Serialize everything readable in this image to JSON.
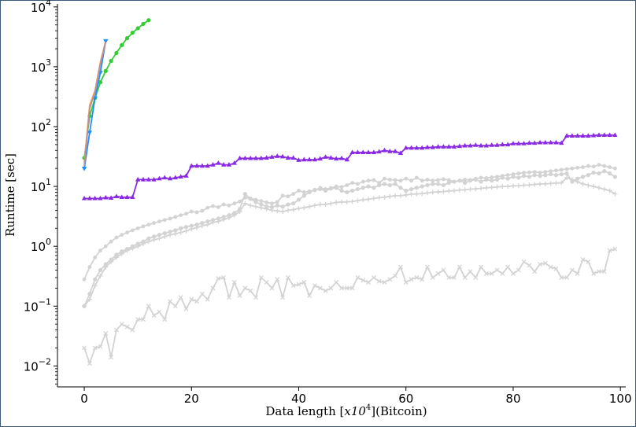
{
  "chart_data": {
    "type": "line",
    "xlabel_prefix": "Data length [",
    "xlabel_math": "x10",
    "xlabel_exp": "4",
    "xlabel_suffix": "](Bitcoin)",
    "ylabel": "Runtime [sec]",
    "xlim": [
      -5,
      101
    ],
    "ylim_log10": [
      -2.35,
      4.05
    ],
    "yscale": "log",
    "xticks": [
      {
        "value": 0,
        "label": "0"
      },
      {
        "value": 20,
        "label": "20"
      },
      {
        "value": 40,
        "label": "40"
      },
      {
        "value": 60,
        "label": "60"
      },
      {
        "value": 80,
        "label": "80"
      },
      {
        "value": 100,
        "label": "100"
      }
    ],
    "yticks": [
      {
        "exp": -2,
        "base": "10",
        "sup": "−2"
      },
      {
        "exp": -1,
        "base": "10",
        "sup": "−1"
      },
      {
        "exp": 0,
        "base": "10",
        "sup": "0"
      },
      {
        "exp": 1,
        "base": "10",
        "sup": "1"
      },
      {
        "exp": 2,
        "base": "10",
        "sup": "2"
      },
      {
        "exp": 3,
        "base": "10",
        "sup": "3"
      },
      {
        "exp": 4,
        "base": "10",
        "sup": "4"
      }
    ],
    "grid": false,
    "legend": "none",
    "series": [
      {
        "color": "#d3d3d3",
        "marker": "x",
        "x": [
          0,
          1,
          2,
          3,
          4,
          5,
          6,
          7,
          8,
          9,
          10,
          11,
          12,
          13,
          14,
          15,
          16,
          17,
          18,
          19,
          20,
          21,
          22,
          23,
          24,
          25,
          26,
          27,
          28,
          29,
          30,
          31,
          32,
          33,
          34,
          35,
          36,
          37,
          38,
          39,
          40,
          41,
          42,
          43,
          44,
          45,
          46,
          47,
          48,
          49,
          50,
          51,
          52,
          53,
          54,
          55,
          56,
          57,
          58,
          59,
          60,
          61,
          62,
          63,
          64,
          65,
          66,
          67,
          68,
          69,
          70,
          71,
          72,
          73,
          74,
          75,
          76,
          77,
          78,
          79,
          80,
          81,
          82,
          83,
          84,
          85,
          86,
          87,
          88,
          89,
          90,
          91,
          92,
          93,
          94,
          95,
          96,
          97,
          98,
          99
        ],
        "y": [
          0.02,
          0.011,
          0.02,
          0.021,
          0.035,
          0.014,
          0.04,
          0.05,
          0.045,
          0.04,
          0.06,
          0.06,
          0.1,
          0.07,
          0.08,
          0.06,
          0.12,
          0.1,
          0.14,
          0.09,
          0.13,
          0.12,
          0.16,
          0.13,
          0.2,
          0.29,
          0.3,
          0.14,
          0.25,
          0.15,
          0.2,
          0.18,
          0.14,
          0.3,
          0.25,
          0.2,
          0.28,
          0.14,
          0.3,
          0.22,
          0.23,
          0.25,
          0.15,
          0.22,
          0.2,
          0.18,
          0.2,
          0.25,
          0.2,
          0.2,
          0.2,
          0.3,
          0.27,
          0.25,
          0.3,
          0.26,
          0.25,
          0.28,
          0.32,
          0.45,
          0.25,
          0.28,
          0.3,
          0.28,
          0.45,
          0.3,
          0.35,
          0.4,
          0.3,
          0.3,
          0.45,
          0.3,
          0.38,
          0.3,
          0.45,
          0.35,
          0.35,
          0.4,
          0.35,
          0.45,
          0.35,
          0.4,
          0.55,
          0.48,
          0.38,
          0.5,
          0.52,
          0.45,
          0.42,
          0.3,
          0.3,
          0.4,
          0.35,
          0.6,
          0.55,
          0.35,
          0.38,
          0.38,
          0.85,
          0.9
        ]
      },
      {
        "color": "#d3d3d3",
        "marker": "star",
        "x": [
          0,
          1,
          2,
          3,
          4,
          5,
          6,
          7,
          8,
          9,
          10,
          11,
          12,
          13,
          14,
          15,
          16,
          17,
          18,
          19,
          20,
          21,
          22,
          23,
          24,
          25,
          26,
          27,
          28,
          29,
          30,
          31,
          32,
          33,
          34,
          35,
          36,
          37,
          38,
          39,
          40,
          41,
          42,
          43,
          44,
          45,
          46,
          47,
          48,
          49,
          50,
          51,
          52,
          53,
          54,
          55,
          56,
          57,
          58,
          59,
          60,
          61,
          62,
          63,
          64,
          65,
          66,
          67,
          68,
          69,
          70,
          71,
          72,
          73,
          74,
          75,
          76,
          77,
          78,
          79,
          80,
          81,
          82,
          83,
          84,
          85,
          86,
          87,
          88,
          89,
          90,
          91,
          92,
          93,
          94,
          95,
          96,
          97,
          98,
          99
        ],
        "y": [
          0.28,
          0.45,
          0.65,
          0.85,
          1.0,
          1.2,
          1.4,
          1.55,
          1.7,
          1.85,
          2.0,
          2.15,
          2.3,
          2.45,
          2.6,
          2.75,
          2.9,
          3.1,
          3.3,
          3.5,
          3.8,
          3.7,
          3.9,
          4.4,
          4.7,
          4.5,
          5.0,
          4.8,
          5.2,
          5.6,
          6.5,
          6.3,
          6.0,
          5.7,
          5.4,
          5.2,
          5.5,
          7.0,
          6.8,
          7.5,
          8.5,
          8.0,
          8.3,
          8.6,
          9.5,
          9.0,
          9.4,
          10.0,
          9.8,
          10.5,
          11.5,
          11.0,
          12.0,
          12.5,
          12.8,
          11.5,
          13.5,
          13.0,
          12.8,
          12.5,
          13.5,
          12.5,
          14.0,
          12.5,
          13.0,
          12.5,
          12.8,
          13.2,
          12.8,
          12.0,
          12.5,
          13.0,
          12.8,
          13.5,
          14.0,
          13.8,
          14.2,
          14.5,
          15.0,
          15.5,
          16.0,
          16.5,
          17.0,
          17.2,
          17.5,
          17.0,
          17.5,
          18.0,
          18.5,
          19.0,
          19.5,
          20.0,
          20.5,
          21.0,
          22.0,
          21.5,
          23.0,
          22.0,
          21.0,
          20.0
        ]
      },
      {
        "color": "#d3d3d3",
        "marker": "dot",
        "x": [
          0,
          1,
          2,
          3,
          4,
          5,
          6,
          7,
          8,
          9,
          10,
          11,
          12,
          13,
          14,
          15,
          16,
          17,
          18,
          19,
          20,
          21,
          22,
          23,
          24,
          25,
          26,
          27,
          28,
          29,
          30,
          31,
          32,
          33,
          34,
          35,
          36,
          37,
          38,
          39,
          40,
          41,
          42,
          43,
          44,
          45,
          46,
          47,
          48,
          49,
          50,
          51,
          52,
          53,
          54,
          55,
          56,
          57,
          58,
          59,
          60,
          61,
          62,
          63,
          64,
          65,
          66,
          67,
          68,
          69,
          70,
          71,
          72,
          73,
          74,
          75,
          76,
          77,
          78,
          79,
          80,
          81,
          82,
          83,
          84,
          85,
          86,
          87,
          88,
          89,
          90,
          91,
          92,
          93,
          94,
          95,
          96,
          97,
          98,
          99
        ],
        "y": [
          0.1,
          0.16,
          0.28,
          0.4,
          0.5,
          0.6,
          0.72,
          0.82,
          0.9,
          1.0,
          1.1,
          1.2,
          1.35,
          1.45,
          1.55,
          1.65,
          1.75,
          1.85,
          2.0,
          2.1,
          2.2,
          2.3,
          2.45,
          2.6,
          2.75,
          2.9,
          3.1,
          3.3,
          3.6,
          4.2,
          7.5,
          6.2,
          5.5,
          5.0,
          4.6,
          4.5,
          4.8,
          4.6,
          5.0,
          5.2,
          6.0,
          7.0,
          8.0,
          8.8,
          9.0,
          8.5,
          9.2,
          9.5,
          8.5,
          8.0,
          8.5,
          9.0,
          9.5,
          10.0,
          9.5,
          10.5,
          11.0,
          10.5,
          11.0,
          9.5,
          8.5,
          9.0,
          9.5,
          10.0,
          10.5,
          11.0,
          11.0,
          10.5,
          11.5,
          12.0,
          12.5,
          11.5,
          12.5,
          13.0,
          12.0,
          13.0,
          12.5,
          13.0,
          14.0,
          13.5,
          14.5,
          14.0,
          15.0,
          14.5,
          15.5,
          15.0,
          15.5,
          16.0,
          15.5,
          16.0,
          16.5,
          12.0,
          13.5,
          14.5,
          15.5,
          17.0,
          16.5,
          18.0,
          16.5,
          14.5
        ]
      },
      {
        "color": "#d3d3d3",
        "marker": "plus",
        "x": [
          0,
          1,
          2,
          3,
          4,
          5,
          6,
          7,
          8,
          9,
          10,
          11,
          12,
          13,
          14,
          15,
          16,
          17,
          18,
          19,
          20,
          21,
          22,
          23,
          24,
          25,
          26,
          27,
          28,
          29,
          30,
          31,
          32,
          33,
          34,
          35,
          36,
          37,
          38,
          39,
          40,
          41,
          42,
          43,
          44,
          45,
          46,
          47,
          48,
          49,
          50,
          51,
          52,
          53,
          54,
          55,
          56,
          57,
          58,
          59,
          60,
          61,
          62,
          63,
          64,
          65,
          66,
          67,
          68,
          69,
          70,
          71,
          72,
          73,
          74,
          75,
          76,
          77,
          78,
          79,
          80,
          81,
          82,
          83,
          84,
          85,
          86,
          87,
          88,
          89,
          90,
          91,
          92,
          93,
          94,
          95,
          96,
          97,
          98,
          99
        ],
        "y": [
          0.1,
          0.13,
          0.22,
          0.32,
          0.45,
          0.55,
          0.65,
          0.75,
          0.85,
          0.92,
          1.0,
          1.1,
          1.2,
          1.28,
          1.35,
          1.45,
          1.55,
          1.62,
          1.7,
          1.8,
          1.95,
          2.05,
          2.2,
          2.3,
          2.5,
          2.6,
          2.8,
          3.0,
          3.3,
          3.8,
          5.2,
          4.8,
          4.6,
          4.4,
          4.2,
          4.0,
          3.9,
          3.8,
          4.0,
          4.1,
          4.3,
          4.4,
          4.6,
          4.8,
          5.0,
          5.0,
          5.2,
          5.4,
          5.5,
          5.5,
          5.6,
          5.8,
          6.0,
          6.1,
          6.3,
          6.5,
          6.6,
          6.8,
          7.0,
          7.0,
          7.2,
          7.4,
          7.5,
          7.6,
          7.8,
          8.0,
          8.1,
          8.2,
          8.4,
          8.5,
          8.7,
          8.8,
          9.0,
          9.1,
          9.3,
          9.5,
          9.6,
          9.8,
          10.0,
          10.0,
          10.2,
          10.3,
          10.5,
          10.6,
          10.8,
          11.0,
          11.0,
          11.2,
          11.4,
          11.5,
          14.0,
          13.0,
          12.0,
          11.0,
          10.5,
          10.0,
          9.5,
          9.0,
          8.5,
          7.5
        ]
      },
      {
        "color": "#8a2be2",
        "marker": "triangle",
        "x": [
          0,
          1,
          2,
          3,
          4,
          5,
          6,
          7,
          8,
          9,
          10,
          11,
          12,
          13,
          14,
          15,
          16,
          17,
          18,
          19,
          20,
          21,
          22,
          23,
          24,
          25,
          26,
          27,
          28,
          29,
          30,
          31,
          32,
          33,
          34,
          35,
          36,
          37,
          38,
          39,
          40,
          41,
          42,
          43,
          44,
          45,
          46,
          47,
          48,
          49,
          50,
          51,
          52,
          53,
          54,
          55,
          56,
          57,
          58,
          59,
          60,
          61,
          62,
          63,
          64,
          65,
          66,
          67,
          68,
          69,
          70,
          71,
          72,
          73,
          74,
          75,
          76,
          77,
          78,
          79,
          80,
          81,
          82,
          83,
          84,
          85,
          86,
          87,
          88,
          89,
          90,
          91,
          92,
          93,
          94,
          95,
          96,
          97,
          98,
          99
        ],
        "y": [
          6.3,
          6.3,
          6.3,
          6.3,
          6.5,
          6.4,
          6.8,
          6.6,
          6.6,
          6.6,
          13.0,
          13.0,
          13.0,
          13.0,
          13.5,
          14.0,
          13.5,
          14.0,
          14.5,
          15.0,
          22.0,
          22.0,
          22.0,
          22.0,
          23.0,
          24.5,
          23.0,
          23.0,
          24.5,
          29.5,
          29.5,
          29.5,
          29.5,
          29.5,
          30.0,
          31.0,
          32.0,
          31.5,
          30.0,
          30.0,
          27.5,
          28.0,
          28.0,
          28.0,
          29.0,
          31.0,
          30.0,
          29.0,
          29.5,
          28.0,
          37.0,
          37.0,
          37.0,
          37.0,
          37.0,
          38.0,
          40.0,
          38.5,
          38.5,
          36.0,
          44.0,
          44.0,
          44.0,
          44.0,
          45.0,
          45.0,
          46.0,
          46.0,
          46.0,
          46.0,
          47.0,
          48.0,
          48.0,
          49.0,
          48.0,
          48.0,
          49.0,
          49.0,
          50.0,
          50.0,
          52.0,
          52.0,
          52.0,
          53.0,
          53.0,
          54.0,
          54.0,
          54.0,
          54.0,
          53.0,
          70.0,
          70.0,
          70.0,
          70.0,
          70.0,
          71.0,
          72.0,
          72.0,
          72.0,
          72.0
        ]
      },
      {
        "color": "#32cd32",
        "marker": "dot",
        "x": [
          0,
          1,
          2,
          3,
          4,
          5,
          6,
          7,
          8,
          9,
          10,
          11,
          12
        ],
        "y": [
          30,
          150,
          300,
          550,
          850,
          1250,
          1700,
          2300,
          3000,
          3700,
          4400,
          5200,
          6000
        ]
      },
      {
        "color": "#f4a460",
        "marker": "none",
        "x": [
          0,
          1,
          2,
          3,
          4
        ],
        "y": [
          25,
          230,
          400,
          1200,
          2700
        ]
      },
      {
        "color": "#1e90ff",
        "marker": "triangle-down",
        "x": [
          0,
          1,
          2,
          3,
          4
        ],
        "y": [
          20,
          80,
          300,
          800,
          2700
        ]
      },
      {
        "color": "#bc8f8f",
        "marker": "none",
        "x": [
          0,
          1,
          2,
          3,
          4
        ],
        "y": [
          22,
          200,
          380,
          1100,
          2600
        ]
      }
    ]
  }
}
